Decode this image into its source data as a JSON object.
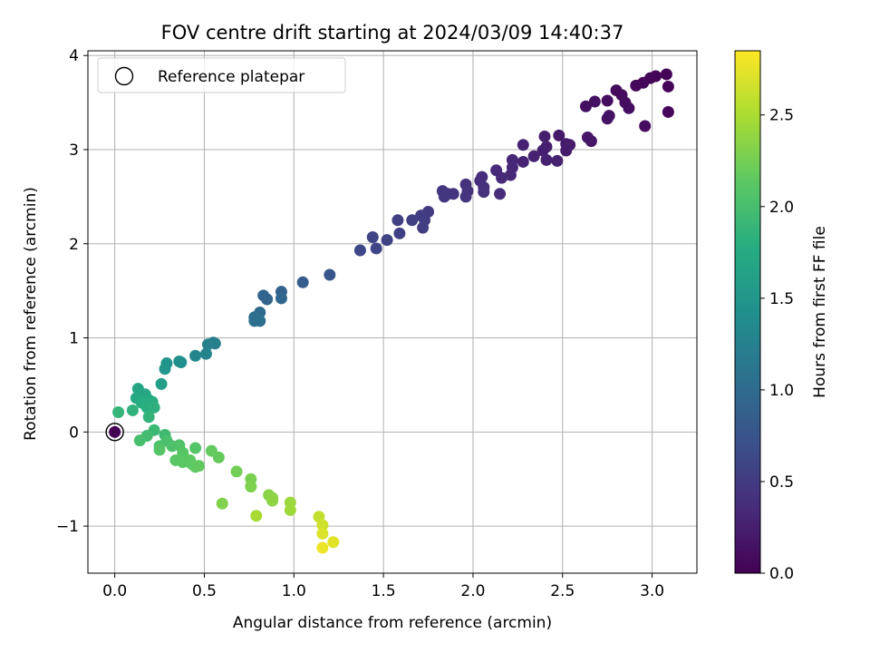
{
  "chart_data": {
    "type": "scatter",
    "title": "FOV centre drift starting at 2024/03/09 14:40:37",
    "xlabel": "Angular distance from reference (arcmin)",
    "ylabel": "Rotation from reference (arcmin)",
    "xlim": [
      -0.15,
      3.25
    ],
    "ylim": [
      -1.5,
      4.05
    ],
    "xticks": [
      0.0,
      0.5,
      1.0,
      1.5,
      2.0,
      2.5,
      3.0
    ],
    "xtick_labels": [
      "0.0",
      "0.5",
      "1.0",
      "1.5",
      "2.0",
      "2.5",
      "3.0"
    ],
    "yticks": [
      -1,
      0,
      1,
      2,
      3,
      4
    ],
    "ytick_labels": [
      "−1",
      "0",
      "1",
      "2",
      "3",
      "4"
    ],
    "grid": true,
    "legend": {
      "position": "upper-left",
      "entries": [
        "Reference platepar"
      ]
    },
    "colorbar": {
      "label": "Hours from first FF file",
      "colormap": "viridis",
      "range": [
        0.0,
        2.85
      ],
      "ticks": [
        0.0,
        0.5,
        1.0,
        1.5,
        2.0,
        2.5
      ],
      "tick_labels": [
        "0.0",
        "0.5",
        "1.0",
        "1.5",
        "2.0",
        "2.5"
      ]
    },
    "reference_point": {
      "name": "Reference platepar",
      "x": 0.0,
      "y": 0.0,
      "c": 0.0
    },
    "points": [
      {
        "x": 3.08,
        "y": 3.8,
        "c": 0.02
      },
      {
        "x": 3.02,
        "y": 3.78,
        "c": 0.03
      },
      {
        "x": 2.99,
        "y": 3.76,
        "c": 0.04
      },
      {
        "x": 2.95,
        "y": 3.71,
        "c": 0.05
      },
      {
        "x": 2.91,
        "y": 3.68,
        "c": 0.06
      },
      {
        "x": 3.09,
        "y": 3.67,
        "c": 0.03
      },
      {
        "x": 2.8,
        "y": 3.63,
        "c": 0.08
      },
      {
        "x": 2.83,
        "y": 3.58,
        "c": 0.09
      },
      {
        "x": 2.85,
        "y": 3.5,
        "c": 0.1
      },
      {
        "x": 2.87,
        "y": 3.44,
        "c": 0.11
      },
      {
        "x": 2.75,
        "y": 3.52,
        "c": 0.12
      },
      {
        "x": 2.68,
        "y": 3.51,
        "c": 0.13
      },
      {
        "x": 2.63,
        "y": 3.46,
        "c": 0.14
      },
      {
        "x": 3.09,
        "y": 3.4,
        "c": 0.05
      },
      {
        "x": 2.76,
        "y": 3.36,
        "c": 0.14
      },
      {
        "x": 2.75,
        "y": 3.33,
        "c": 0.15
      },
      {
        "x": 2.96,
        "y": 3.25,
        "c": 0.1
      },
      {
        "x": 2.64,
        "y": 3.13,
        "c": 0.17
      },
      {
        "x": 2.66,
        "y": 3.09,
        "c": 0.18
      },
      {
        "x": 2.48,
        "y": 3.15,
        "c": 0.2
      },
      {
        "x": 2.52,
        "y": 3.06,
        "c": 0.21
      },
      {
        "x": 2.54,
        "y": 3.05,
        "c": 0.22
      },
      {
        "x": 2.52,
        "y": 2.99,
        "c": 0.23
      },
      {
        "x": 2.4,
        "y": 3.14,
        "c": 0.24
      },
      {
        "x": 2.41,
        "y": 3.03,
        "c": 0.25
      },
      {
        "x": 2.39,
        "y": 2.99,
        "c": 0.26
      },
      {
        "x": 2.34,
        "y": 2.93,
        "c": 0.27
      },
      {
        "x": 2.28,
        "y": 3.05,
        "c": 0.28
      },
      {
        "x": 2.28,
        "y": 2.87,
        "c": 0.29
      },
      {
        "x": 2.41,
        "y": 2.89,
        "c": 0.28
      },
      {
        "x": 2.47,
        "y": 2.88,
        "c": 0.27
      },
      {
        "x": 2.22,
        "y": 2.89,
        "c": 0.31
      },
      {
        "x": 2.22,
        "y": 2.81,
        "c": 0.32
      },
      {
        "x": 2.21,
        "y": 2.73,
        "c": 0.33
      },
      {
        "x": 2.13,
        "y": 2.78,
        "c": 0.34
      },
      {
        "x": 2.16,
        "y": 2.7,
        "c": 0.35
      },
      {
        "x": 2.05,
        "y": 2.71,
        "c": 0.37
      },
      {
        "x": 2.04,
        "y": 2.67,
        "c": 0.38
      },
      {
        "x": 2.06,
        "y": 2.6,
        "c": 0.39
      },
      {
        "x": 2.06,
        "y": 2.55,
        "c": 0.4
      },
      {
        "x": 1.96,
        "y": 2.63,
        "c": 0.41
      },
      {
        "x": 1.97,
        "y": 2.56,
        "c": 0.42
      },
      {
        "x": 1.96,
        "y": 2.5,
        "c": 0.43
      },
      {
        "x": 1.89,
        "y": 2.53,
        "c": 0.44
      },
      {
        "x": 1.86,
        "y": 2.53,
        "c": 0.45
      },
      {
        "x": 1.83,
        "y": 2.56,
        "c": 0.46
      },
      {
        "x": 1.84,
        "y": 2.5,
        "c": 0.47
      },
      {
        "x": 2.15,
        "y": 2.53,
        "c": 0.36
      },
      {
        "x": 1.75,
        "y": 2.34,
        "c": 0.5
      },
      {
        "x": 1.71,
        "y": 2.3,
        "c": 0.51
      },
      {
        "x": 1.73,
        "y": 2.25,
        "c": 0.52
      },
      {
        "x": 1.66,
        "y": 2.25,
        "c": 0.54
      },
      {
        "x": 1.72,
        "y": 2.17,
        "c": 0.53
      },
      {
        "x": 1.58,
        "y": 2.25,
        "c": 0.55
      },
      {
        "x": 1.59,
        "y": 2.11,
        "c": 0.56
      },
      {
        "x": 1.52,
        "y": 2.04,
        "c": 0.58
      },
      {
        "x": 1.44,
        "y": 2.07,
        "c": 0.59
      },
      {
        "x": 1.46,
        "y": 1.95,
        "c": 0.6
      },
      {
        "x": 1.37,
        "y": 1.93,
        "c": 0.62
      },
      {
        "x": 1.2,
        "y": 1.67,
        "c": 0.76
      },
      {
        "x": 1.05,
        "y": 1.59,
        "c": 0.84
      },
      {
        "x": 0.93,
        "y": 1.49,
        "c": 0.9
      },
      {
        "x": 0.83,
        "y": 1.45,
        "c": 0.92
      },
      {
        "x": 0.85,
        "y": 1.41,
        "c": 0.94
      },
      {
        "x": 0.93,
        "y": 1.42,
        "c": 0.96
      },
      {
        "x": 0.81,
        "y": 1.27,
        "c": 1.0
      },
      {
        "x": 0.78,
        "y": 1.22,
        "c": 1.03
      },
      {
        "x": 0.78,
        "y": 1.18,
        "c": 1.05
      },
      {
        "x": 0.81,
        "y": 1.18,
        "c": 1.06
      },
      {
        "x": 0.55,
        "y": 0.95,
        "c": 1.22
      },
      {
        "x": 0.56,
        "y": 0.94,
        "c": 1.23
      },
      {
        "x": 0.52,
        "y": 0.93,
        "c": 1.25
      },
      {
        "x": 0.45,
        "y": 0.81,
        "c": 1.3
      },
      {
        "x": 0.51,
        "y": 0.83,
        "c": 1.28
      },
      {
        "x": 0.36,
        "y": 0.75,
        "c": 1.42
      },
      {
        "x": 0.37,
        "y": 0.74,
        "c": 1.43
      },
      {
        "x": 0.29,
        "y": 0.73,
        "c": 1.47
      },
      {
        "x": 0.28,
        "y": 0.67,
        "c": 1.5
      },
      {
        "x": 0.26,
        "y": 0.51,
        "c": 1.6
      },
      {
        "x": 0.13,
        "y": 0.46,
        "c": 1.68
      },
      {
        "x": 0.17,
        "y": 0.4,
        "c": 1.7
      },
      {
        "x": 0.12,
        "y": 0.36,
        "c": 1.72
      },
      {
        "x": 0.19,
        "y": 0.34,
        "c": 1.75
      },
      {
        "x": 0.21,
        "y": 0.32,
        "c": 1.77
      },
      {
        "x": 0.15,
        "y": 0.31,
        "c": 1.78
      },
      {
        "x": 0.18,
        "y": 0.26,
        "c": 1.8
      },
      {
        "x": 0.22,
        "y": 0.26,
        "c": 1.82
      },
      {
        "x": 0.1,
        "y": 0.23,
        "c": 1.84
      },
      {
        "x": 0.02,
        "y": 0.21,
        "c": 1.88
      },
      {
        "x": 0.19,
        "y": 0.16,
        "c": 1.86
      },
      {
        "x": 0.22,
        "y": 0.02,
        "c": 1.92
      },
      {
        "x": 0.28,
        "y": -0.03,
        "c": 1.95
      },
      {
        "x": 0.18,
        "y": -0.04,
        "c": 1.97
      },
      {
        "x": 0.14,
        "y": -0.09,
        "c": 2.0
      },
      {
        "x": 0.29,
        "y": -0.09,
        "c": 2.02
      },
      {
        "x": 0.25,
        "y": -0.15,
        "c": 2.04
      },
      {
        "x": 0.32,
        "y": -0.15,
        "c": 2.05
      },
      {
        "x": 0.36,
        "y": -0.14,
        "c": 2.06
      },
      {
        "x": 0.45,
        "y": -0.17,
        "c": 2.08
      },
      {
        "x": 0.25,
        "y": -0.19,
        "c": 2.09
      },
      {
        "x": 0.38,
        "y": -0.22,
        "c": 2.1
      },
      {
        "x": 0.34,
        "y": -0.3,
        "c": 2.11
      },
      {
        "x": 0.38,
        "y": -0.32,
        "c": 2.12
      },
      {
        "x": 0.42,
        "y": -0.3,
        "c": 2.13
      },
      {
        "x": 0.43,
        "y": -0.34,
        "c": 2.14
      },
      {
        "x": 0.45,
        "y": -0.37,
        "c": 2.15
      },
      {
        "x": 0.47,
        "y": -0.36,
        "c": 2.16
      },
      {
        "x": 0.54,
        "y": -0.2,
        "c": 2.17
      },
      {
        "x": 0.58,
        "y": -0.27,
        "c": 2.18
      },
      {
        "x": 0.68,
        "y": -0.42,
        "c": 2.24
      },
      {
        "x": 0.76,
        "y": -0.5,
        "c": 2.27
      },
      {
        "x": 0.76,
        "y": -0.58,
        "c": 2.29
      },
      {
        "x": 0.6,
        "y": -0.76,
        "c": 2.3
      },
      {
        "x": 0.86,
        "y": -0.67,
        "c": 2.34
      },
      {
        "x": 0.88,
        "y": -0.7,
        "c": 2.35
      },
      {
        "x": 0.88,
        "y": -0.73,
        "c": 2.36
      },
      {
        "x": 0.98,
        "y": -0.75,
        "c": 2.42
      },
      {
        "x": 0.98,
        "y": -0.83,
        "c": 2.44
      },
      {
        "x": 0.79,
        "y": -0.89,
        "c": 2.48
      },
      {
        "x": 1.14,
        "y": -0.9,
        "c": 2.6
      },
      {
        "x": 1.16,
        "y": -0.99,
        "c": 2.65
      },
      {
        "x": 1.16,
        "y": -1.08,
        "c": 2.7
      },
      {
        "x": 1.22,
        "y": -1.17,
        "c": 2.73
      },
      {
        "x": 1.16,
        "y": -1.23,
        "c": 2.78
      }
    ]
  }
}
